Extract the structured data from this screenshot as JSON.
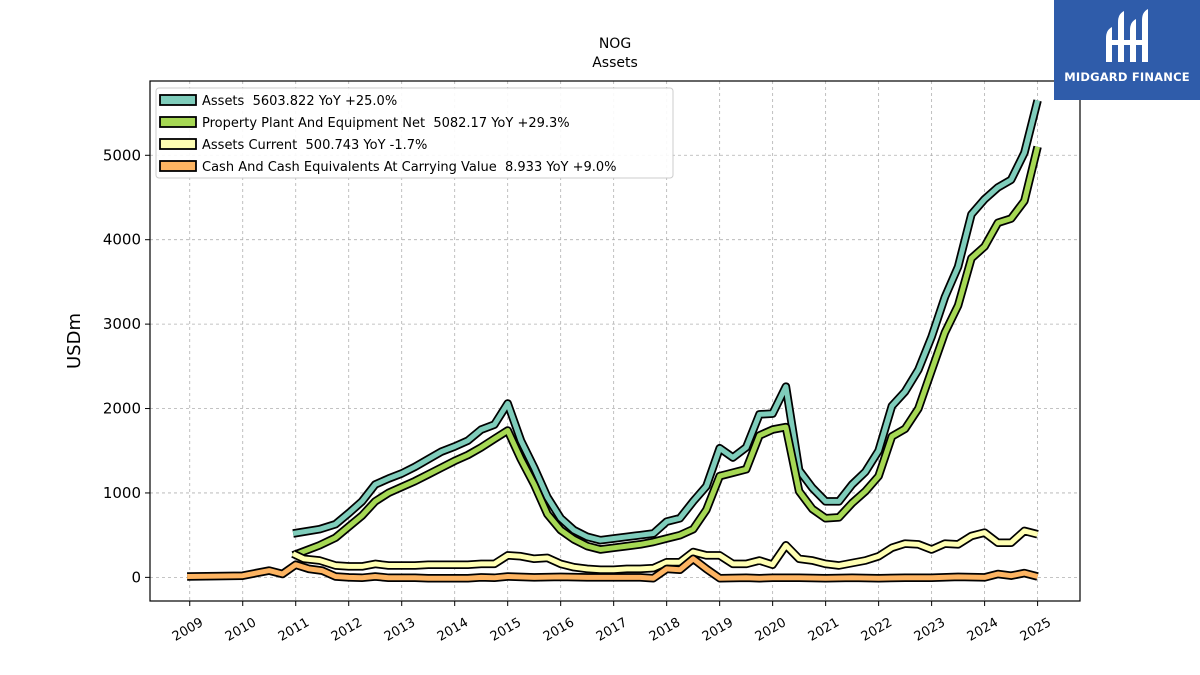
{
  "logo": {
    "text": "MIDGARD FINANCE",
    "bg_color": "#2f5caa"
  },
  "chart_data": {
    "type": "line",
    "title": "NOG",
    "subtitle": "Assets",
    "ylabel": "USDm",
    "xlabel": "",
    "ylim": [
      -280,
      5880
    ],
    "xlim": [
      2008.25,
      2025.8
    ],
    "yticks": [
      0,
      1000,
      2000,
      3000,
      4000,
      5000
    ],
    "xticks": [
      2009,
      2010,
      2011,
      2012,
      2013,
      2014,
      2015,
      2016,
      2017,
      2018,
      2019,
      2020,
      2021,
      2022,
      2023,
      2024,
      2025
    ],
    "grid": true,
    "legend_position": "top-left",
    "series": [
      {
        "name": "Assets  5603.822 YoY +25.0%",
        "color": "#7fcdbb",
        "x": [
          2010.95,
          2011.45,
          2011.75,
          2012.0,
          2012.25,
          2012.5,
          2012.75,
          2013.0,
          2013.25,
          2013.5,
          2013.75,
          2014.0,
          2014.25,
          2014.5,
          2014.75,
          2015.0,
          2015.25,
          2015.5,
          2015.75,
          2016.0,
          2016.25,
          2016.5,
          2016.75,
          2017.0,
          2017.25,
          2017.5,
          2017.75,
          2018.0,
          2018.25,
          2018.5,
          2018.75,
          2019.0,
          2019.25,
          2019.5,
          2019.75,
          2020.0,
          2020.25,
          2020.5,
          2020.75,
          2021.0,
          2021.25,
          2021.5,
          2021.75,
          2022.0,
          2022.25,
          2022.5,
          2022.75,
          2023.0,
          2023.25,
          2023.5,
          2023.75,
          2024.0,
          2024.25,
          2024.5,
          2024.75,
          2025.0
        ],
        "y": [
          520,
          570,
          630,
          760,
          900,
          1100,
          1170,
          1230,
          1310,
          1400,
          1490,
          1550,
          1620,
          1750,
          1810,
          2060,
          1620,
          1300,
          950,
          700,
          560,
          480,
          440,
          460,
          480,
          500,
          520,
          660,
          700,
          900,
          1080,
          1530,
          1420,
          1540,
          1930,
          1940,
          2260,
          1270,
          1060,
          900,
          900,
          1100,
          1250,
          1500,
          2030,
          2200,
          2460,
          2850,
          3320,
          3680,
          4300,
          4480,
          4620,
          4710,
          5030,
          5650
        ]
      },
      {
        "name": "Property Plant And Equipment Net  5082.17 YoY +29.3%",
        "color": "#a6d854",
        "x": [
          2010.95,
          2011.45,
          2011.75,
          2012.0,
          2012.25,
          2012.5,
          2012.75,
          2013.0,
          2013.25,
          2013.5,
          2013.75,
          2014.0,
          2014.25,
          2014.5,
          2014.75,
          2015.0,
          2015.25,
          2015.5,
          2015.75,
          2016.0,
          2016.25,
          2016.5,
          2016.75,
          2017.0,
          2017.25,
          2017.5,
          2017.75,
          2018.0,
          2018.25,
          2018.5,
          2018.75,
          2019.0,
          2019.25,
          2019.5,
          2019.75,
          2020.0,
          2020.25,
          2020.5,
          2020.75,
          2021.0,
          2021.25,
          2021.5,
          2021.75,
          2022.0,
          2022.25,
          2022.5,
          2022.75,
          2023.0,
          2023.25,
          2023.5,
          2023.75,
          2024.0,
          2024.25,
          2024.5,
          2024.75,
          2025.0
        ],
        "y": [
          260,
          380,
          470,
          600,
          730,
          900,
          1000,
          1070,
          1140,
          1220,
          1300,
          1380,
          1450,
          1540,
          1640,
          1740,
          1400,
          1100,
          750,
          560,
          450,
          370,
          330,
          350,
          370,
          390,
          420,
          460,
          500,
          570,
          800,
          1200,
          1240,
          1280,
          1680,
          1750,
          1780,
          1020,
          810,
          700,
          710,
          880,
          1020,
          1200,
          1670,
          1760,
          2000,
          2450,
          2900,
          3220,
          3780,
          3920,
          4200,
          4250,
          4460,
          5100
        ]
      },
      {
        "name": "Assets Current  500.743 YoY -1.7%",
        "color": "#ffffb3",
        "x": [
          2010.95,
          2011.15,
          2011.45,
          2011.75,
          2012.0,
          2012.25,
          2012.5,
          2012.75,
          2013.0,
          2013.25,
          2013.5,
          2013.75,
          2014.0,
          2014.25,
          2014.5,
          2014.75,
          2015.0,
          2015.25,
          2015.5,
          2015.75,
          2016.0,
          2016.25,
          2016.5,
          2016.75,
          2017.0,
          2017.25,
          2017.5,
          2017.75,
          2018.0,
          2018.25,
          2018.5,
          2018.75,
          2019.0,
          2019.25,
          2019.5,
          2019.75,
          2020.0,
          2020.25,
          2020.5,
          2020.75,
          2021.0,
          2021.25,
          2021.5,
          2021.75,
          2022.0,
          2022.25,
          2022.5,
          2022.75,
          2023.0,
          2023.25,
          2023.5,
          2023.75,
          2024.0,
          2024.25,
          2024.5,
          2024.75,
          2025.0
        ],
        "y": [
          280,
          220,
          200,
          140,
          130,
          130,
          160,
          140,
          140,
          140,
          150,
          150,
          150,
          150,
          160,
          160,
          260,
          250,
          220,
          230,
          160,
          120,
          100,
          90,
          90,
          100,
          100,
          110,
          180,
          180,
          300,
          260,
          260,
          160,
          160,
          200,
          150,
          380,
          220,
          200,
          160,
          140,
          170,
          200,
          250,
          350,
          400,
          390,
          330,
          400,
          390,
          490,
          530,
          410,
          410,
          550,
          510
        ]
      },
      {
        "name": "Cash And Cash Equivalents At Carrying Value  8.933 YoY +9.0%",
        "color": "#fdb462",
        "x": [
          2008.95,
          2009.5,
          2010.0,
          2010.25,
          2010.5,
          2010.75,
          2011.0,
          2011.25,
          2011.5,
          2011.75,
          2012.0,
          2012.25,
          2012.5,
          2012.75,
          2013.0,
          2013.25,
          2013.5,
          2013.75,
          2014.0,
          2014.25,
          2014.5,
          2014.75,
          2015.0,
          2015.5,
          2016.0,
          2016.5,
          2017.0,
          2017.5,
          2017.75,
          2018.0,
          2018.25,
          2018.5,
          2018.75,
          2019.0,
          2019.5,
          2019.75,
          2020.0,
          2020.5,
          2021.0,
          2021.5,
          2022.0,
          2022.5,
          2023.0,
          2023.5,
          2024.0,
          2024.25,
          2024.5,
          2024.75,
          2025.0
        ],
        "y": [
          10,
          15,
          20,
          50,
          80,
          40,
          150,
          100,
          80,
          10,
          0,
          -5,
          10,
          -5,
          -5,
          -5,
          -10,
          -10,
          -10,
          -10,
          0,
          -5,
          10,
          0,
          5,
          0,
          0,
          0,
          -10,
          100,
          90,
          220,
          100,
          -10,
          -5,
          -10,
          -5,
          -5,
          -10,
          -5,
          -10,
          -5,
          -5,
          5,
          0,
          40,
          20,
          50,
          10
        ]
      }
    ]
  }
}
